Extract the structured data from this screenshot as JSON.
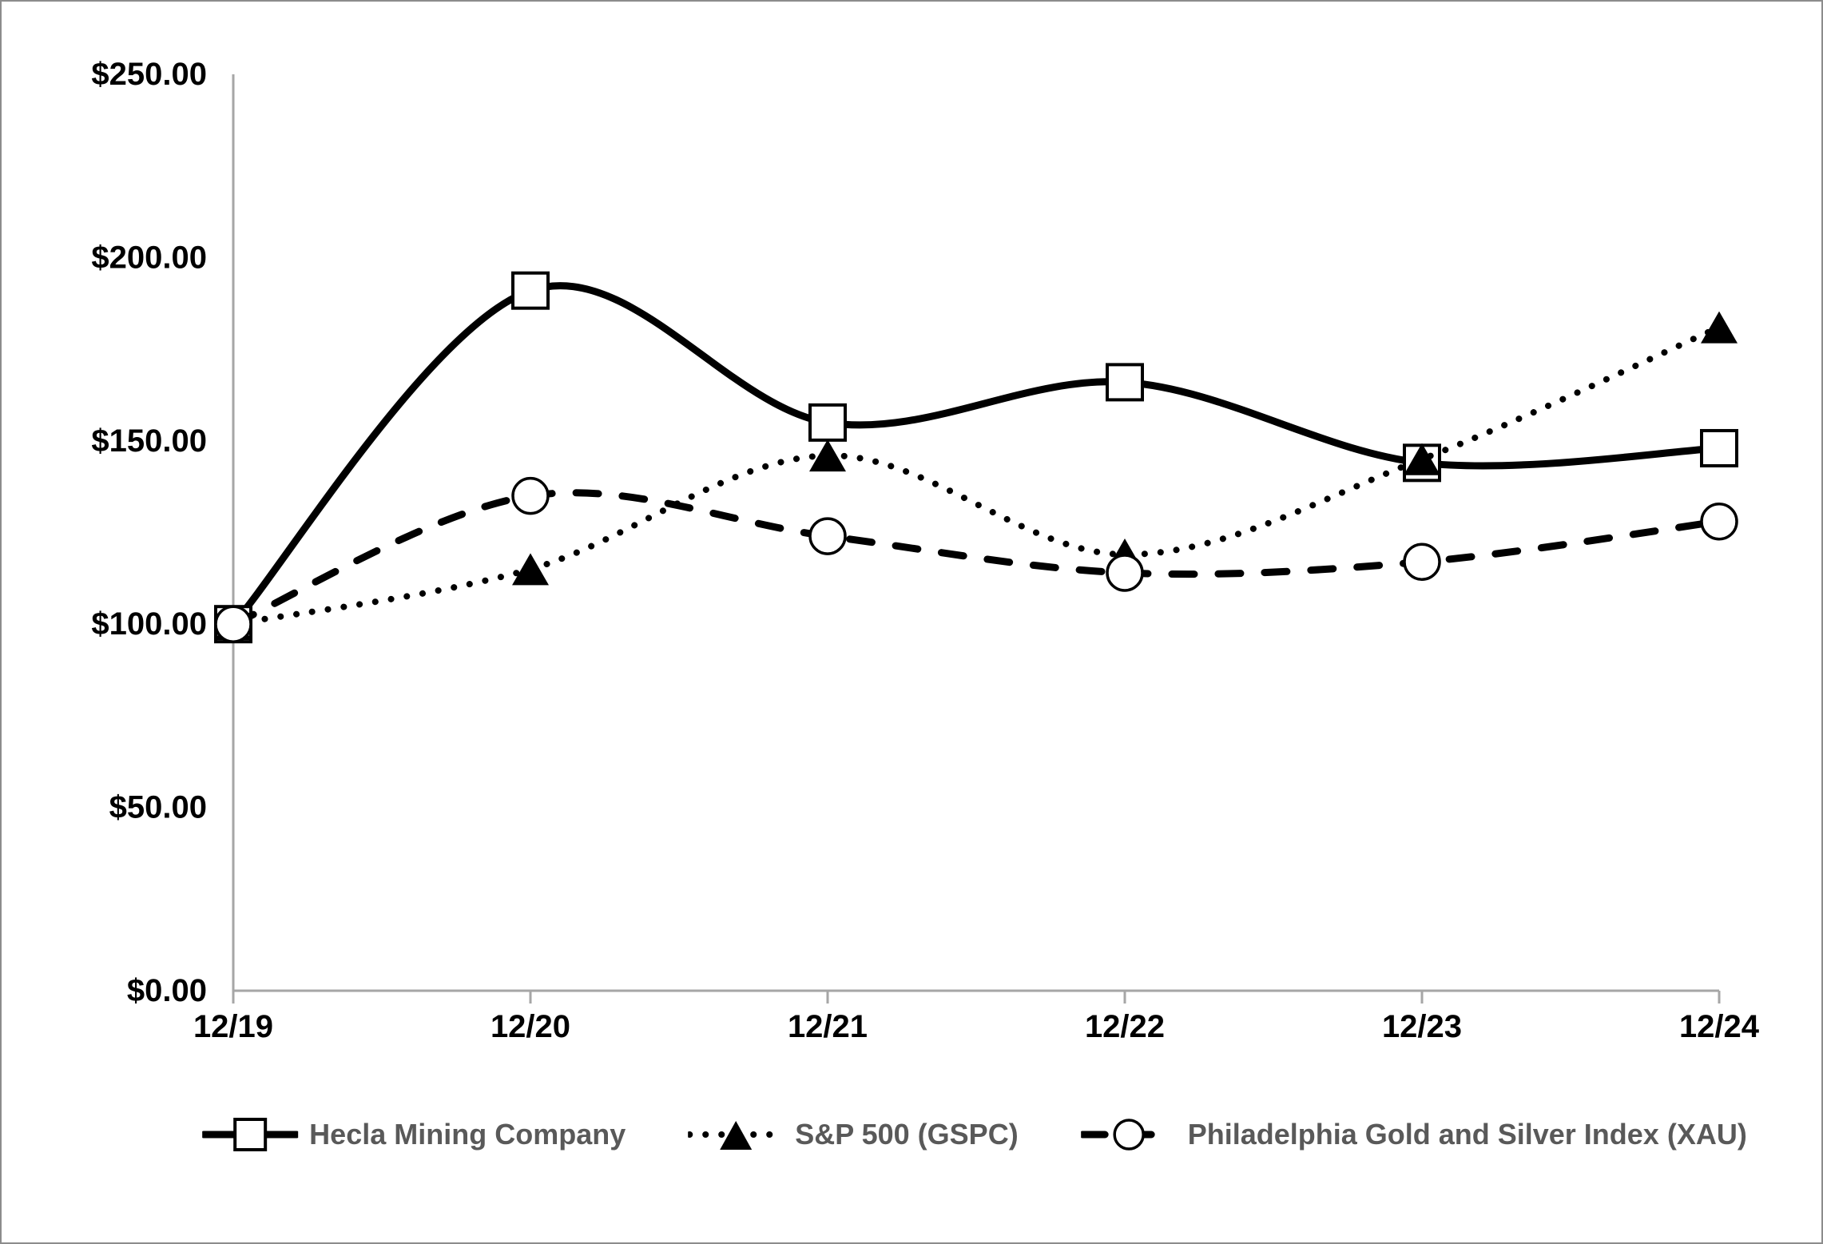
{
  "figure": {
    "background": "#ffffff",
    "border_color": "#8c8c8c"
  },
  "chart_data": {
    "type": "line",
    "title": "",
    "xlabel": "",
    "ylabel": "",
    "categories": [
      "12/19",
      "12/20",
      "12/21",
      "12/22",
      "12/23",
      "12/24"
    ],
    "x_tick_labels": [
      "12/19",
      "12/20",
      "12/21",
      "12/22",
      "12/23",
      "12/24"
    ],
    "y_tick_labels": [
      "$250.00",
      "$200.00",
      "$150.00",
      "$100.00",
      "$50.00",
      "$0.00"
    ],
    "ylim": [
      0,
      250
    ],
    "y_step": 50,
    "grid": false,
    "smoothed": true,
    "legend_position": "bottom",
    "axis_color": "#a6a6a6",
    "tick_label_color": "#000000",
    "legend_text_color": "#595959",
    "series": [
      {
        "name": "Hecla Mining Company",
        "marker": "square",
        "line_style": "solid",
        "color": "#000000",
        "values": [
          100,
          191,
          155,
          166,
          144,
          148
        ]
      },
      {
        "name": "S&P 500 (GSPC)",
        "marker": "triangle",
        "line_style": "dotted",
        "color": "#000000",
        "values": [
          100,
          115,
          146,
          119,
          145,
          181
        ]
      },
      {
        "name": "Philadelphia Gold and Silver Index (XAU)",
        "marker": "circle",
        "line_style": "dashed",
        "color": "#000000",
        "values": [
          100,
          135,
          124,
          114,
          117,
          128
        ]
      }
    ]
  }
}
